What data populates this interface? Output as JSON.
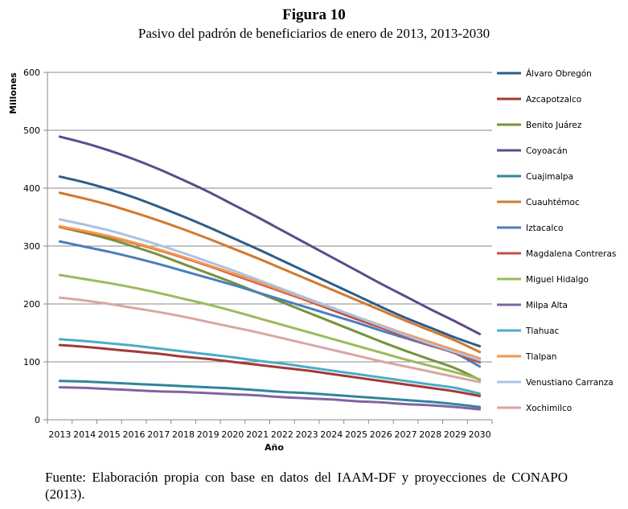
{
  "figure": {
    "title": "Figura 10",
    "subtitle": "Pasivo del padrón de beneficiarios de enero de 2013, 2013-2030",
    "source": "Fuente: Elaboración propia con base en datos del IAAM-DF y proyecciones de CONAPO (2013)."
  },
  "chart_data": {
    "type": "line",
    "xlabel": "Año",
    "ylabel": "Millones",
    "ylim": [
      0,
      600
    ],
    "yticks": [
      0,
      100,
      200,
      300,
      400,
      500,
      600
    ],
    "grid": true,
    "legend_position": "right",
    "categories": [
      "2013",
      "2014",
      "2015",
      "2016",
      "2017",
      "2018",
      "2019",
      "2020",
      "2021",
      "2022",
      "2023",
      "2024",
      "2025",
      "2026",
      "2027",
      "2028",
      "2029",
      "2030"
    ],
    "series": [
      {
        "name": "Álvaro Obregón",
        "color": "#2E5C8A",
        "values": [
          420,
          410,
          398,
          384,
          368,
          351,
          333,
          314,
          295,
          275,
          255,
          235,
          215,
          195,
          176,
          159,
          142,
          127
        ]
      },
      {
        "name": "Azcapotzalco",
        "color": "#A33A36",
        "values": [
          129,
          126,
          122,
          118,
          114,
          109,
          105,
          100,
          95,
          90,
          85,
          79,
          73,
          67,
          61,
          55,
          49,
          41
        ]
      },
      {
        "name": "Benito Juárez",
        "color": "#76933C",
        "values": [
          333,
          323,
          312,
          299,
          285,
          269,
          253,
          237,
          220,
          203,
          186,
          169,
          152,
          135,
          119,
          104,
          89,
          69
        ]
      },
      {
        "name": "Coyoacán",
        "color": "#5F4A8B",
        "values": [
          489,
          478,
          465,
          450,
          433,
          414,
          394,
          372,
          350,
          327,
          304,
          281,
          258,
          235,
          213,
          191,
          170,
          148
        ]
      },
      {
        "name": "Cuajimalpa",
        "color": "#31859C",
        "values": [
          67,
          66,
          64,
          62,
          60,
          58,
          56,
          54,
          51,
          48,
          46,
          43,
          40,
          37,
          34,
          31,
          27,
          22
        ]
      },
      {
        "name": "Cuauhtémoc",
        "color": "#D07A2E",
        "values": [
          392,
          382,
          371,
          358,
          344,
          329,
          313,
          296,
          279,
          261,
          243,
          225,
          207,
          189,
          171,
          154,
          137,
          117
        ]
      },
      {
        "name": "Iztacalco",
        "color": "#4A7EBB",
        "values": [
          308,
          299,
          290,
          280,
          269,
          257,
          245,
          233,
          220,
          207,
          194,
          181,
          168,
          154,
          141,
          128,
          115,
          92
        ]
      },
      {
        "name": "Magdalena Contreras",
        "color": "#C0504D",
        "values": [
          333,
          325,
          316,
          305,
          293,
          280,
          266,
          251,
          236,
          221,
          206,
          190,
          174,
          159,
          144,
          129,
          115,
          99
        ]
      },
      {
        "name": "Miguel Hidalgo",
        "color": "#9BBB59",
        "values": [
          250,
          243,
          236,
          228,
          219,
          209,
          199,
          188,
          176,
          164,
          152,
          140,
          128,
          116,
          104,
          93,
          82,
          70
        ]
      },
      {
        "name": "Milpa Alta",
        "color": "#8064A2",
        "values": [
          56,
          55,
          53,
          51,
          49,
          48,
          46,
          44,
          42,
          39,
          37,
          35,
          32,
          30,
          27,
          25,
          22,
          18
        ]
      },
      {
        "name": "Tlahuac",
        "color": "#4BACC6",
        "values": [
          139,
          136,
          132,
          128,
          123,
          118,
          113,
          108,
          102,
          97,
          91,
          85,
          79,
          73,
          67,
          61,
          55,
          45
        ]
      },
      {
        "name": "Tlalpan",
        "color": "#F79646",
        "values": [
          334,
          326,
          317,
          306,
          294,
          281,
          267,
          253,
          238,
          223,
          208,
          193,
          178,
          163,
          148,
          134,
          120,
          106
        ]
      },
      {
        "name": "Venustiano Carranza",
        "color": "#A9C3E3",
        "values": [
          346,
          337,
          327,
          315,
          302,
          288,
          273,
          258,
          242,
          226,
          210,
          194,
          178,
          162,
          146,
          131,
          117,
          103
        ]
      },
      {
        "name": "Xochimilco",
        "color": "#D9A6A5",
        "values": [
          211,
          206,
          200,
          193,
          186,
          178,
          169,
          160,
          151,
          141,
          131,
          121,
          111,
          101,
          92,
          83,
          74,
          65
        ]
      }
    ]
  }
}
